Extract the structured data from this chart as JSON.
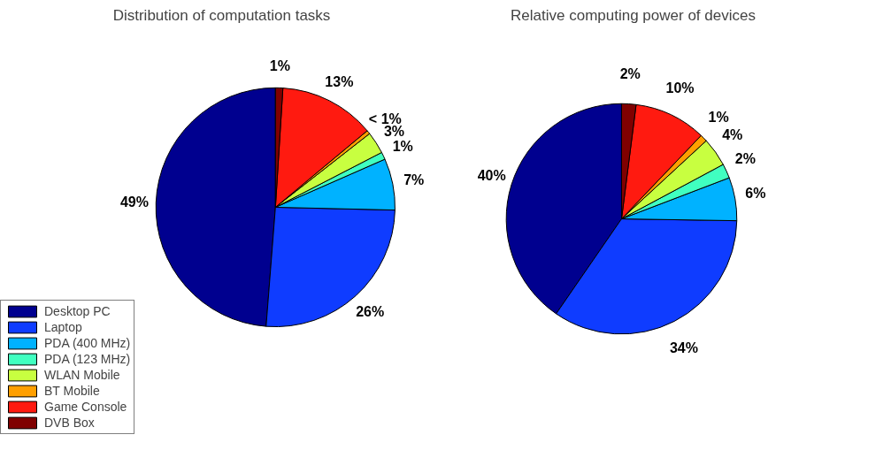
{
  "chart_data": [
    {
      "type": "pie",
      "title": "Distribution of computation tasks",
      "categories": [
        "Desktop PC",
        "Laptop",
        "PDA (400 MHz)",
        "PDA (123 MHz)",
        "WLAN Mobile",
        "BT Mobile",
        "Game Console",
        "DVB Box"
      ],
      "values": [
        49,
        26,
        7,
        1,
        3,
        0.5,
        13,
        1
      ],
      "value_labels": [
        "49%",
        "26%",
        "7%",
        "1%",
        "3%",
        "< 1%",
        "13%",
        "1%"
      ],
      "colors": [
        "#00008f",
        "#0f3cff",
        "#00b2ff",
        "#40ffc0",
        "#c8ff40",
        "#ff9f00",
        "#ff1a10",
        "#800000"
      ],
      "legend": "bottom left"
    },
    {
      "type": "pie",
      "title": "Relative computing power of devices",
      "categories": [
        null,
        null,
        null,
        null,
        null,
        null,
        null,
        null
      ],
      "values": [
        40,
        34,
        6,
        2,
        4,
        1,
        10,
        2
      ],
      "value_labels": [
        "40%",
        "34%",
        "6%",
        "2%",
        "4%",
        "1%",
        "10%",
        "2%"
      ],
      "colors": [
        "#00008f",
        "#0f3cff",
        "#00b2ff",
        "#40ffc0",
        "#c8ff40",
        "#ff9f00",
        "#ff1a10",
        "#800000"
      ]
    }
  ]
}
